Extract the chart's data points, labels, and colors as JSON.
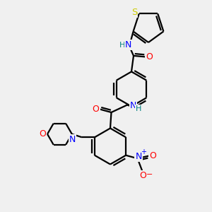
{
  "bg_color": "#f0f0f0",
  "atom_colors": {
    "C": "#000000",
    "N": "#0000ff",
    "O": "#ff0000",
    "S": "#cccc00",
    "H": "#008080"
  },
  "bond_color": "#000000",
  "bond_width": 1.6,
  "fig_w": 3.0,
  "fig_h": 3.0,
  "dpi": 100
}
